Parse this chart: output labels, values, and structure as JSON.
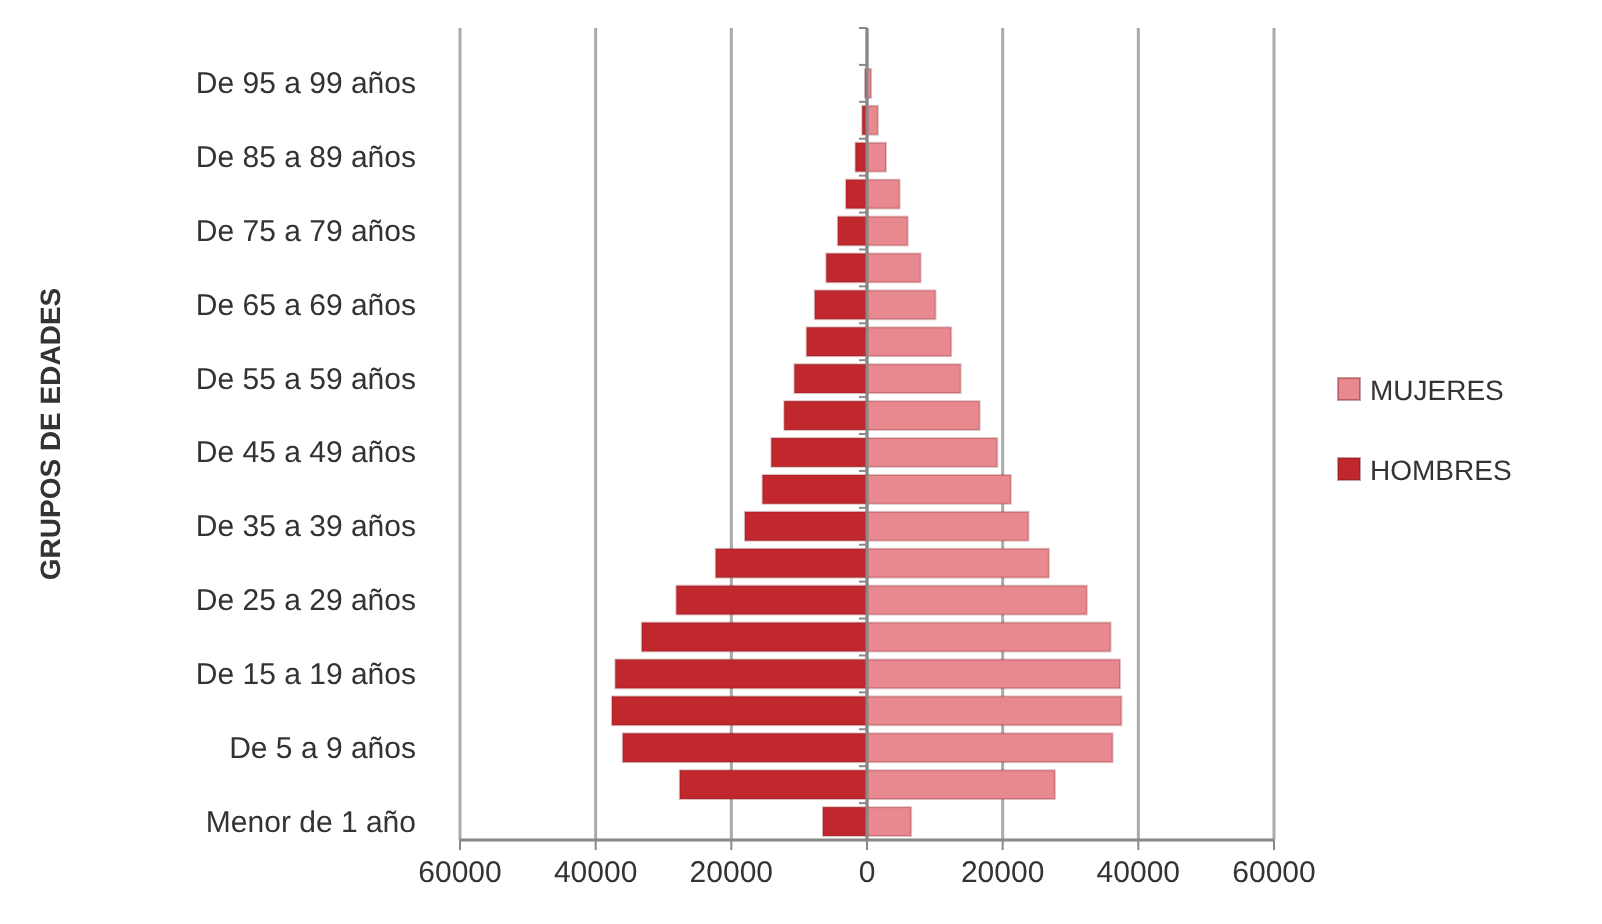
{
  "chart_data": {
    "type": "bar",
    "orientation": "horizontal",
    "ylabel": "GRUPOS DE EDADES",
    "categories": [
      null,
      "De 95 a 99 años",
      null,
      "De 85 a 89 años",
      null,
      "De 75 a 79 años",
      null,
      "De 65 a 69 años",
      null,
      "De 55 a 59 años",
      null,
      "De 45 a 49 años",
      null,
      "De 35 a 39 años",
      null,
      "De 25 a 29 años",
      null,
      "De 15 a 19 años",
      null,
      "De 5 a 9 años",
      null,
      "Menor de 1 año"
    ],
    "series": [
      {
        "name": "MUJERES",
        "color": "#e8898f",
        "values": [
          null,
          600,
          1600,
          2800,
          4800,
          6000,
          7900,
          10100,
          12400,
          13800,
          16600,
          19200,
          21200,
          23800,
          26800,
          32400,
          35900,
          37300,
          37500,
          36200,
          27700,
          6500
        ]
      },
      {
        "name": "HOMBRES",
        "color": "#c0282d",
        "values": [
          null,
          -300,
          -700,
          -1700,
          -3100,
          -4300,
          -6000,
          -7700,
          -8900,
          -10700,
          -12200,
          -14100,
          -15400,
          -18000,
          -22300,
          -28100,
          -33200,
          -37100,
          -37600,
          -36000,
          -27600,
          -6500
        ]
      }
    ],
    "xlim": [
      -60000,
      60000
    ],
    "xticks": [
      {
        "value": -60000,
        "label": "60000"
      },
      {
        "value": -40000,
        "label": "40000"
      },
      {
        "value": -20000,
        "label": "20000"
      },
      0,
      20000,
      40000,
      60000
    ],
    "stacked": true,
    "grid": "x",
    "legend": "right"
  }
}
